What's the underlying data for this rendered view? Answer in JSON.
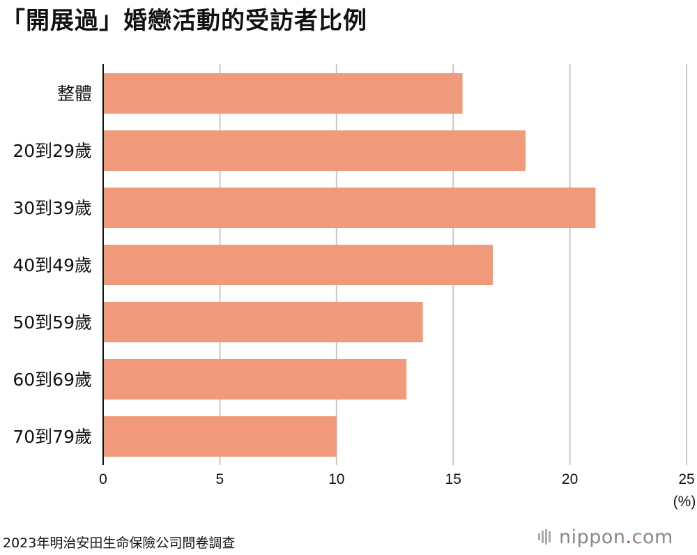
{
  "title": "「開展過」婚戀活動的受訪者比例",
  "source": "2023年明治安田生命保險公司問卷調查",
  "logo": {
    "name": "nippon",
    "dot": ".",
    "suffix": "com"
  },
  "colors": {
    "bar": "#f09a7b",
    "grid": "#c8c8c8",
    "axis": "#111111"
  },
  "chart_data": {
    "type": "bar",
    "orientation": "horizontal",
    "title": "「開展過」婚戀活動的受訪者比例",
    "categories": [
      "整體",
      "20到29歲",
      "30到39歲",
      "40到49歲",
      "50到59歲",
      "60到69歲",
      "70到79歲"
    ],
    "values": [
      15.4,
      18.1,
      21.1,
      16.7,
      13.7,
      13.0,
      10.0
    ],
    "xlim": [
      0,
      25
    ],
    "xticks": [
      0,
      5,
      10,
      15,
      20,
      25
    ],
    "xlabel": "(%)",
    "grid": true,
    "legend": "none"
  }
}
